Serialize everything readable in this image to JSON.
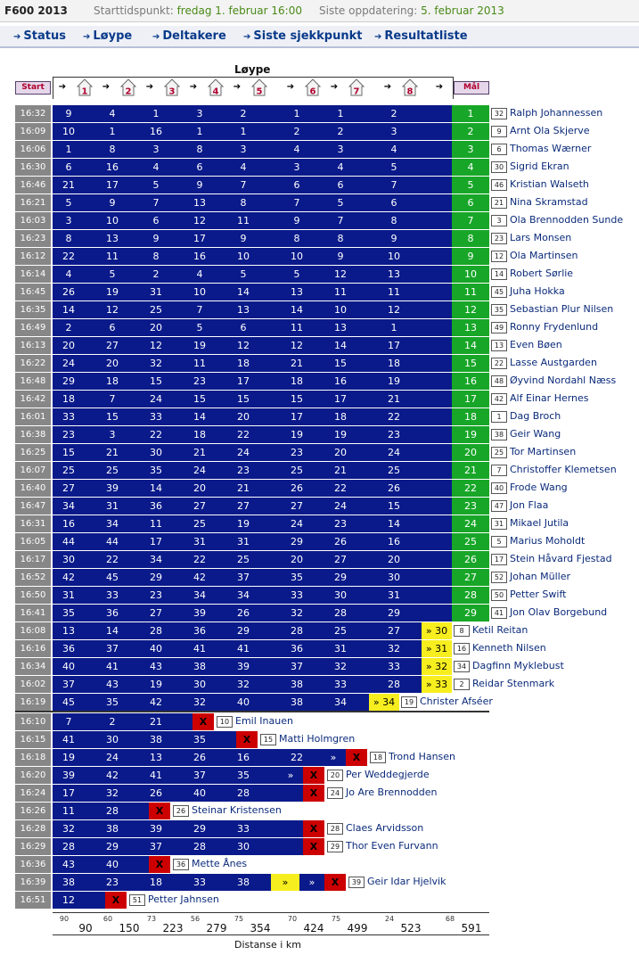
{
  "header": {
    "app": "F600 2013",
    "start_label": "Starttidspunkt:",
    "start_value": "fredag 1. februar 16:00",
    "update_label": "Siste oppdatering:",
    "update_value": "5. februar 2013"
  },
  "menu": {
    "items": [
      {
        "label": "Status"
      },
      {
        "label": "Løype"
      },
      {
        "label": "Deltakere"
      },
      {
        "label": "Siste sjekkpunkt"
      },
      {
        "label": "Resultatliste"
      }
    ]
  },
  "course": {
    "title": "Løype",
    "start_label": "Start",
    "finish_label": "Mål",
    "checkpoints": [
      "1",
      "2",
      "3",
      "4",
      "5",
      "6",
      "7",
      "8"
    ],
    "distance_label": "Distanse i km",
    "distances": [
      90,
      150,
      223,
      279,
      354,
      424,
      499,
      523,
      591
    ],
    "legs": [
      90,
      60,
      73,
      56,
      75,
      70,
      75,
      24,
      68
    ]
  },
  "icons": {
    "checkpoint": "cabin-icon",
    "arrow": "arrow-right-icon",
    "scratch": "x-mark-icon",
    "in_progress": "double-chevron-icon"
  },
  "colors": {
    "progress": "#0a1a8a",
    "finished": "#18a628",
    "current": "#f7ee1f",
    "scratched": "#cc0000",
    "time": "#878787"
  },
  "finished": [
    {
      "time": "16:32",
      "cps": [
        "9",
        "4",
        "1",
        "3",
        "2",
        "1",
        "1",
        "2"
      ],
      "result": "1",
      "bib": "32",
      "name": "Ralph Johannessen"
    },
    {
      "time": "16:09",
      "cps": [
        "10",
        "1",
        "16",
        "1",
        "1",
        "2",
        "2",
        "3"
      ],
      "result": "2",
      "bib": "9",
      "name": "Arnt Ola Skjerve"
    },
    {
      "time": "16:06",
      "cps": [
        "1",
        "8",
        "3",
        "8",
        "3",
        "4",
        "3",
        "4"
      ],
      "result": "3",
      "bib": "6",
      "name": "Thomas Wærner"
    },
    {
      "time": "16:30",
      "cps": [
        "6",
        "16",
        "4",
        "6",
        "4",
        "3",
        "4",
        "5"
      ],
      "result": "4",
      "bib": "30",
      "name": "Sigrid Ekran"
    },
    {
      "time": "16:46",
      "cps": [
        "21",
        "17",
        "5",
        "9",
        "7",
        "6",
        "6",
        "7"
      ],
      "result": "5",
      "bib": "46",
      "name": "Kristian Walseth"
    },
    {
      "time": "16:21",
      "cps": [
        "5",
        "9",
        "7",
        "13",
        "8",
        "7",
        "5",
        "6"
      ],
      "result": "6",
      "bib": "21",
      "name": "Nina Skramstad"
    },
    {
      "time": "16:03",
      "cps": [
        "3",
        "10",
        "6",
        "12",
        "11",
        "9",
        "7",
        "8"
      ],
      "result": "7",
      "bib": "3",
      "name": "Ola Brennodden Sunde"
    },
    {
      "time": "16:23",
      "cps": [
        "8",
        "13",
        "9",
        "17",
        "9",
        "8",
        "8",
        "9"
      ],
      "result": "8",
      "bib": "23",
      "name": "Lars Monsen"
    },
    {
      "time": "16:12",
      "cps": [
        "22",
        "11",
        "8",
        "16",
        "10",
        "10",
        "9",
        "10"
      ],
      "result": "9",
      "bib": "12",
      "name": "Ola Martinsen"
    },
    {
      "time": "16:14",
      "cps": [
        "4",
        "5",
        "2",
        "4",
        "5",
        "5",
        "12",
        "13"
      ],
      "result": "10",
      "bib": "14",
      "name": "Robert Sørlie"
    },
    {
      "time": "16:45",
      "cps": [
        "26",
        "19",
        "31",
        "10",
        "14",
        "13",
        "11",
        "11"
      ],
      "result": "11",
      "bib": "45",
      "name": "Juha Hokka"
    },
    {
      "time": "16:35",
      "cps": [
        "14",
        "12",
        "25",
        "7",
        "13",
        "14",
        "10",
        "12"
      ],
      "result": "12",
      "bib": "35",
      "name": "Sebastian Plur Nilsen"
    },
    {
      "time": "16:49",
      "cps": [
        "2",
        "6",
        "20",
        "5",
        "6",
        "11",
        "13",
        "1"
      ],
      "result": "13",
      "bib": "49",
      "name": "Ronny Frydenlund"
    },
    {
      "time": "16:13",
      "cps": [
        "20",
        "27",
        "12",
        "19",
        "12",
        "12",
        "14",
        "17"
      ],
      "result": "14",
      "bib": "13",
      "name": "Even Bøen"
    },
    {
      "time": "16:22",
      "cps": [
        "24",
        "20",
        "32",
        "11",
        "18",
        "21",
        "15",
        "18"
      ],
      "result": "15",
      "bib": "22",
      "name": "Lasse Austgarden"
    },
    {
      "time": "16:48",
      "cps": [
        "29",
        "18",
        "15",
        "23",
        "17",
        "18",
        "16",
        "19"
      ],
      "result": "16",
      "bib": "48",
      "name": "Øyvind Nordahl Næss"
    },
    {
      "time": "16:42",
      "cps": [
        "18",
        "7",
        "24",
        "15",
        "15",
        "15",
        "17",
        "21"
      ],
      "result": "17",
      "bib": "42",
      "name": "Alf Einar Hernes"
    },
    {
      "time": "16:01",
      "cps": [
        "33",
        "15",
        "33",
        "14",
        "20",
        "17",
        "18",
        "22"
      ],
      "result": "18",
      "bib": "1",
      "name": "Dag Broch"
    },
    {
      "time": "16:38",
      "cps": [
        "23",
        "3",
        "22",
        "18",
        "22",
        "19",
        "19",
        "23"
      ],
      "result": "19",
      "bib": "38",
      "name": "Geir Wang"
    },
    {
      "time": "16:25",
      "cps": [
        "15",
        "21",
        "30",
        "21",
        "24",
        "23",
        "20",
        "24"
      ],
      "result": "20",
      "bib": "25",
      "name": "Tor Martinsen"
    },
    {
      "time": "16:07",
      "cps": [
        "25",
        "25",
        "35",
        "24",
        "23",
        "25",
        "21",
        "25"
      ],
      "result": "21",
      "bib": "7",
      "name": "Christoffer Klemetsen"
    },
    {
      "time": "16:40",
      "cps": [
        "27",
        "39",
        "14",
        "20",
        "21",
        "26",
        "22",
        "26"
      ],
      "result": "22",
      "bib": "40",
      "name": "Frode Wang"
    },
    {
      "time": "16:47",
      "cps": [
        "34",
        "31",
        "36",
        "27",
        "27",
        "27",
        "24",
        "15"
      ],
      "result": "23",
      "bib": "47",
      "name": "Jon Flaa"
    },
    {
      "time": "16:31",
      "cps": [
        "16",
        "34",
        "11",
        "25",
        "19",
        "24",
        "23",
        "14"
      ],
      "result": "24",
      "bib": "31",
      "name": "Mikael Jutila"
    },
    {
      "time": "16:05",
      "cps": [
        "44",
        "44",
        "17",
        "31",
        "31",
        "29",
        "26",
        "16"
      ],
      "result": "25",
      "bib": "5",
      "name": "Marius Moholdt"
    },
    {
      "time": "16:17",
      "cps": [
        "30",
        "22",
        "34",
        "22",
        "25",
        "20",
        "27",
        "20"
      ],
      "result": "26",
      "bib": "17",
      "name": "Stein Håvard Fjestad"
    },
    {
      "time": "16:52",
      "cps": [
        "42",
        "45",
        "29",
        "42",
        "37",
        "35",
        "29",
        "30"
      ],
      "result": "27",
      "bib": "52",
      "name": "Johan Müller"
    },
    {
      "time": "16:50",
      "cps": [
        "31",
        "33",
        "23",
        "34",
        "34",
        "33",
        "30",
        "31"
      ],
      "result": "28",
      "bib": "50",
      "name": "Petter Swift"
    },
    {
      "time": "16:41",
      "cps": [
        "35",
        "36",
        "27",
        "39",
        "26",
        "32",
        "28",
        "29"
      ],
      "result": "29",
      "bib": "41",
      "name": "Jon Olav Borgebund"
    }
  ],
  "racing": [
    {
      "time": "16:08",
      "cps": [
        "13",
        "14",
        "28",
        "36",
        "29",
        "28",
        "25",
        "27"
      ],
      "pos": "» 30",
      "bib": "8",
      "name": "Ketil Reitan"
    },
    {
      "time": "16:16",
      "cps": [
        "36",
        "37",
        "40",
        "41",
        "41",
        "36",
        "31",
        "32"
      ],
      "pos": "» 31",
      "bib": "16",
      "name": "Kenneth Nilsen"
    },
    {
      "time": "16:34",
      "cps": [
        "40",
        "41",
        "43",
        "38",
        "39",
        "37",
        "32",
        "33"
      ],
      "pos": "» 32",
      "bib": "34",
      "name": "Dagfinn Myklebust"
    },
    {
      "time": "16:02",
      "cps": [
        "37",
        "43",
        "19",
        "30",
        "32",
        "38",
        "33",
        "28"
      ],
      "pos": "» 33",
      "bib": "2",
      "name": "Reidar Stenmark"
    },
    {
      "time": "16:19",
      "cps": [
        "45",
        "35",
        "42",
        "32",
        "40",
        "38",
        "34"
      ],
      "pos": "» 34",
      "bib": "19",
      "name": "Christer Afséer"
    }
  ],
  "scratched": [
    {
      "time": "16:10",
      "cps": [
        "7",
        "2",
        "21"
      ],
      "mark": "X",
      "bib": "10",
      "name": "Emil Inauen"
    },
    {
      "time": "16:15",
      "cps": [
        "41",
        "30",
        "38",
        "35"
      ],
      "mark": "X",
      "bib": "15",
      "name": "Matti Holmgren"
    },
    {
      "time": "16:18",
      "cps": [
        "19",
        "24",
        "13",
        "26",
        "16",
        "22"
      ],
      "pre": "»",
      "mark": "X",
      "bib": "18",
      "name": "Trond Hansen"
    },
    {
      "time": "16:20",
      "cps": [
        "39",
        "42",
        "41",
        "37",
        "35"
      ],
      "pre": "»",
      "mark": "X",
      "bib": "20",
      "name": "Per Weddegjerde"
    },
    {
      "time": "16:24",
      "cps": [
        "17",
        "32",
        "26",
        "40",
        "28"
      ],
      "mark": "X",
      "bib": "24",
      "name": "Jo Are Brennodden"
    },
    {
      "time": "16:26",
      "cps": [
        "11",
        "28"
      ],
      "mark": "X",
      "bib": "26",
      "name": "Steinar Kristensen"
    },
    {
      "time": "16:28",
      "cps": [
        "32",
        "38",
        "39",
        "29",
        "33"
      ],
      "mark": "X",
      "bib": "28",
      "name": "Claes Arvidsson"
    },
    {
      "time": "16:29",
      "cps": [
        "28",
        "29",
        "37",
        "28",
        "30"
      ],
      "mark": "X",
      "bib": "29",
      "name": "Thor Even Furvann"
    },
    {
      "time": "16:36",
      "cps": [
        "43",
        "40"
      ],
      "mark": "X",
      "bib": "36",
      "name": "Mette Ånes"
    },
    {
      "time": "16:39",
      "cps": [
        "38",
        "23",
        "18",
        "33",
        "38"
      ],
      "yel": "»",
      "pre": "»",
      "mark": "X",
      "bib": "39",
      "name": "Geir Idar Hjelvik"
    },
    {
      "time": "16:51",
      "cps": [
        "12"
      ],
      "mark": "X",
      "bib": "51",
      "name": "Petter Jahnsen"
    }
  ]
}
